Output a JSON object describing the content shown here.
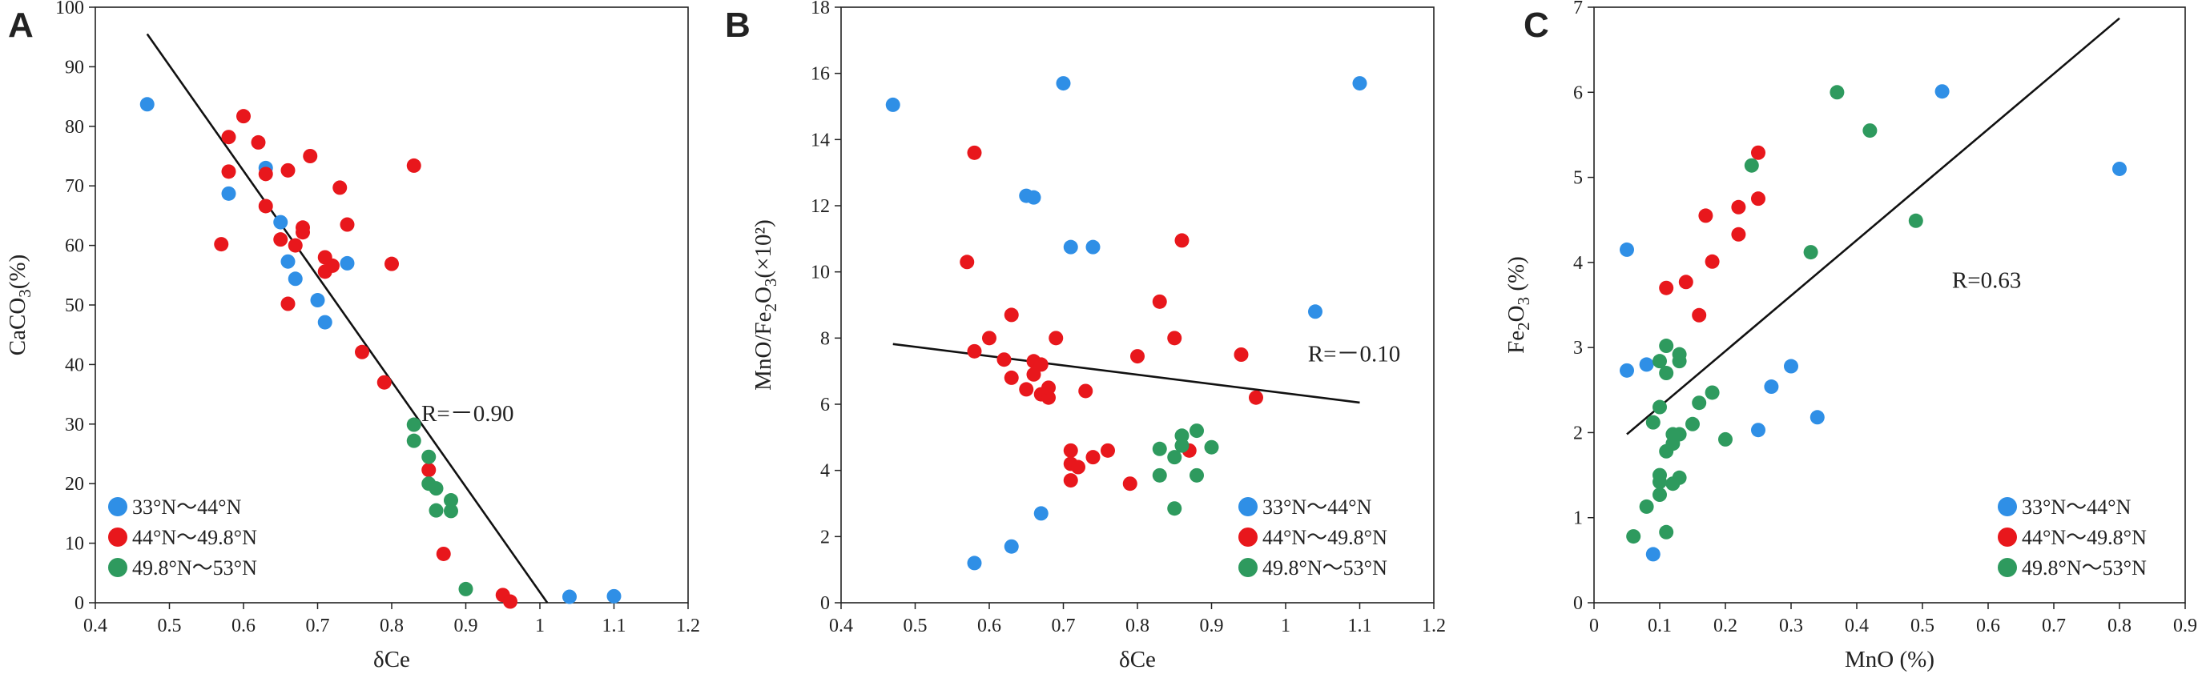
{
  "colors": {
    "blue": "#2f8fe6",
    "red": "#e8171c",
    "green": "#2e9a5e",
    "axis": "#222222",
    "fit": "#111111"
  },
  "legend": [
    "33°N～44°N",
    "44°N～49.8°N",
    "49.8°N～53°N"
  ],
  "chart_data": [
    {
      "type": "scatter",
      "panel": "A",
      "xlabel": "δCe",
      "ylabel": "CaCO3(%)",
      "xlim": [
        0.4,
        1.2
      ],
      "ylim": [
        0,
        100
      ],
      "xticks": [
        "0.4",
        "0.5",
        "0.6",
        "0.7",
        "0.8",
        "0.9",
        "1",
        "1.1",
        "1.2"
      ],
      "yticks": [
        "0",
        "10",
        "20",
        "30",
        "40",
        "50",
        "60",
        "70",
        "80",
        "90",
        "100"
      ],
      "annotation": "R=－0.90",
      "annotation_pos": [
        0.84,
        30.5
      ],
      "fit_line": [
        [
          0.47,
          95.5
        ],
        [
          1.01,
          0
        ]
      ],
      "legend_position": "bottom-left",
      "series": [
        {
          "name": "33°N～44°N",
          "color": "blue",
          "points": [
            [
              0.47,
              83.7
            ],
            [
              0.58,
              68.7
            ],
            [
              0.63,
              73
            ],
            [
              0.65,
              63.9
            ],
            [
              0.66,
              57.3
            ],
            [
              0.67,
              54.4
            ],
            [
              0.7,
              50.8
            ],
            [
              0.71,
              47.1
            ],
            [
              0.74,
              57
            ],
            [
              1.04,
              1
            ],
            [
              1.1,
              1.1
            ]
          ]
        },
        {
          "name": "44°N～49.8°N",
          "color": "red",
          "points": [
            [
              0.57,
              60.2
            ],
            [
              0.58,
              78.2
            ],
            [
              0.58,
              72.4
            ],
            [
              0.6,
              81.7
            ],
            [
              0.62,
              77.3
            ],
            [
              0.63,
              72
            ],
            [
              0.63,
              66.6
            ],
            [
              0.65,
              61
            ],
            [
              0.66,
              72.6
            ],
            [
              0.66,
              50.2
            ],
            [
              0.67,
              60
            ],
            [
              0.68,
              63
            ],
            [
              0.68,
              62.2
            ],
            [
              0.69,
              75
            ],
            [
              0.71,
              58
            ],
            [
              0.71,
              55.6
            ],
            [
              0.72,
              56.6
            ],
            [
              0.73,
              69.7
            ],
            [
              0.74,
              63.5
            ],
            [
              0.76,
              42.1
            ],
            [
              0.79,
              37
            ],
            [
              0.8,
              56.9
            ],
            [
              0.83,
              73.4
            ],
            [
              0.85,
              22.3
            ],
            [
              0.87,
              8.2
            ],
            [
              0.95,
              1.3
            ],
            [
              0.96,
              0.2
            ]
          ]
        },
        {
          "name": "49.8°N～53°N",
          "color": "green",
          "points": [
            [
              0.83,
              29.9
            ],
            [
              0.83,
              27.2
            ],
            [
              0.85,
              24.5
            ],
            [
              0.85,
              20
            ],
            [
              0.86,
              19.2
            ],
            [
              0.86,
              15.5
            ],
            [
              0.88,
              17.2
            ],
            [
              0.88,
              15.4
            ],
            [
              0.9,
              2.3
            ]
          ]
        }
      ]
    },
    {
      "type": "scatter",
      "panel": "B",
      "xlabel": "δCe",
      "ylabel": "MnO/Fe2O3(×10²)",
      "xlim": [
        0.4,
        1.2
      ],
      "ylim": [
        0,
        18
      ],
      "xticks": [
        "0.4",
        "0.5",
        "0.6",
        "0.7",
        "0.8",
        "0.9",
        "1",
        "1.1",
        "1.2"
      ],
      "yticks": [
        "0",
        "2",
        "4",
        "6",
        "8",
        "10",
        "12",
        "14",
        "16",
        "18"
      ],
      "annotation": "R=－0.10",
      "annotation_pos": [
        1.03,
        7.3
      ],
      "fit_line": [
        [
          0.47,
          7.82
        ],
        [
          1.1,
          6.05
        ]
      ],
      "legend_position": "bottom-right",
      "series": [
        {
          "name": "33°N～44°N",
          "color": "blue",
          "points": [
            [
              0.47,
              15.05
            ],
            [
              0.58,
              1.2
            ],
            [
              0.63,
              1.7
            ],
            [
              0.65,
              12.3
            ],
            [
              0.66,
              12.25
            ],
            [
              0.67,
              2.7
            ],
            [
              0.7,
              15.7
            ],
            [
              0.71,
              10.75
            ],
            [
              0.74,
              10.75
            ],
            [
              1.04,
              8.8
            ],
            [
              1.1,
              15.7
            ]
          ]
        },
        {
          "name": "44°N～49.8°N",
          "color": "red",
          "points": [
            [
              0.57,
              10.3
            ],
            [
              0.58,
              13.6
            ],
            [
              0.58,
              7.6
            ],
            [
              0.6,
              8
            ],
            [
              0.62,
              7.35
            ],
            [
              0.63,
              6.8
            ],
            [
              0.63,
              8.7
            ],
            [
              0.65,
              6.45
            ],
            [
              0.66,
              7.3
            ],
            [
              0.66,
              6.9
            ],
            [
              0.67,
              6.3
            ],
            [
              0.67,
              7.2
            ],
            [
              0.68,
              6.2
            ],
            [
              0.68,
              6.5
            ],
            [
              0.69,
              8
            ],
            [
              0.71,
              4.6
            ],
            [
              0.71,
              4.2
            ],
            [
              0.71,
              3.7
            ],
            [
              0.72,
              4.1
            ],
            [
              0.73,
              6.4
            ],
            [
              0.74,
              4.4
            ],
            [
              0.76,
              4.6
            ],
            [
              0.79,
              3.6
            ],
            [
              0.8,
              7.45
            ],
            [
              0.83,
              9.1
            ],
            [
              0.85,
              8
            ],
            [
              0.86,
              10.95
            ],
            [
              0.87,
              4.6
            ],
            [
              0.94,
              7.5
            ],
            [
              0.96,
              6.2
            ]
          ]
        },
        {
          "name": "49.8°N～53°N",
          "color": "green",
          "points": [
            [
              0.83,
              4.65
            ],
            [
              0.83,
              3.85
            ],
            [
              0.85,
              4.4
            ],
            [
              0.85,
              2.85
            ],
            [
              0.86,
              5.05
            ],
            [
              0.86,
              4.75
            ],
            [
              0.88,
              5.2
            ],
            [
              0.88,
              3.85
            ],
            [
              0.9,
              4.7
            ]
          ]
        }
      ]
    },
    {
      "type": "scatter",
      "panel": "C",
      "xlabel": "MnO (%)",
      "ylabel": "Fe2O3 (%)",
      "xlim": [
        0,
        0.9
      ],
      "ylim": [
        0,
        7
      ],
      "xticks": [
        "0",
        "0.1",
        "0.2",
        "0.3",
        "0.4",
        "0.5",
        "0.6",
        "0.7",
        "0.8",
        "0.9"
      ],
      "yticks": [
        "0",
        "1",
        "2",
        "3",
        "4",
        "5",
        "6",
        "7"
      ],
      "annotation": "R=0.63",
      "annotation_pos": [
        0.545,
        3.7
      ],
      "fit_line": [
        [
          0.05,
          1.98
        ],
        [
          0.8,
          6.87
        ]
      ],
      "legend_position": "bottom-right",
      "series": [
        {
          "name": "33°N～44°N",
          "color": "blue",
          "points": [
            [
              0.05,
              4.15
            ],
            [
              0.05,
              2.73
            ],
            [
              0.08,
              2.8
            ],
            [
              0.09,
              0.57
            ],
            [
              0.25,
              2.03
            ],
            [
              0.27,
              2.54
            ],
            [
              0.3,
              2.78
            ],
            [
              0.34,
              2.18
            ],
            [
              0.53,
              6.01
            ],
            [
              0.8,
              5.1
            ]
          ]
        },
        {
          "name": "44°N～49.8°N",
          "color": "red",
          "points": [
            [
              0.11,
              3.7
            ],
            [
              0.14,
              3.77
            ],
            [
              0.16,
              3.38
            ],
            [
              0.17,
              4.55
            ],
            [
              0.18,
              4.01
            ],
            [
              0.22,
              4.65
            ],
            [
              0.22,
              4.33
            ],
            [
              0.25,
              5.29
            ],
            [
              0.25,
              4.75
            ]
          ]
        },
        {
          "name": "49.8°N～53°N",
          "color": "green",
          "points": [
            [
              0.06,
              0.78
            ],
            [
              0.08,
              1.13
            ],
            [
              0.09,
              2.12
            ],
            [
              0.1,
              2.84
            ],
            [
              0.1,
              2.3
            ],
            [
              0.1,
              1.5
            ],
            [
              0.1,
              1.42
            ],
            [
              0.1,
              1.27
            ],
            [
              0.11,
              3.02
            ],
            [
              0.11,
              2.7
            ],
            [
              0.11,
              1.78
            ],
            [
              0.11,
              0.83
            ],
            [
              0.12,
              1.98
            ],
            [
              0.12,
              1.87
            ],
            [
              0.12,
              1.4
            ],
            [
              0.13,
              2.92
            ],
            [
              0.13,
              2.84
            ],
            [
              0.13,
              1.98
            ],
            [
              0.13,
              1.47
            ],
            [
              0.15,
              2.1
            ],
            [
              0.16,
              2.35
            ],
            [
              0.18,
              2.47
            ],
            [
              0.2,
              1.92
            ],
            [
              0.24,
              5.14
            ],
            [
              0.33,
              4.12
            ],
            [
              0.37,
              6
            ],
            [
              0.42,
              5.55
            ],
            [
              0.49,
              4.49
            ]
          ]
        }
      ]
    }
  ]
}
